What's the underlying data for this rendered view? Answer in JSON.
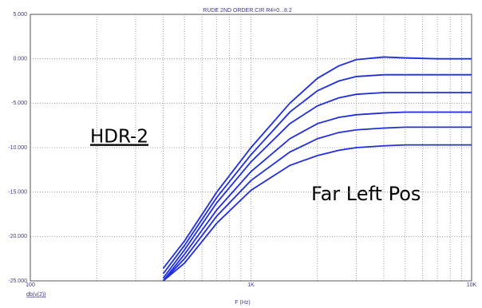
{
  "chart_data": {
    "type": "line",
    "title": "RUDE 2ND ORDER.CIR R4=0...8.2",
    "y_label": "db(v(2))",
    "x_label": "F (Hz)",
    "annotations": [
      "HDR-2",
      "Far Left Pos"
    ],
    "x": [
      400,
      500,
      700,
      1000,
      1500,
      2000,
      2500,
      3000,
      4000,
      5000,
      7000,
      10000
    ],
    "series": [
      {
        "color": "#1f2ee0",
        "values": [
          -23.6,
          -20.5,
          -15,
          -10,
          -5,
          -2.2,
          -0.8,
          -0.1,
          0.2,
          0.1,
          0,
          0
        ]
      },
      {
        "color": "#1f2ee0",
        "values": [
          -24.2,
          -21,
          -15.6,
          -10.8,
          -6,
          -3.6,
          -2.5,
          -2,
          -1.8,
          -1.8,
          -1.8,
          -1.8
        ]
      },
      {
        "color": "#1f2ee0",
        "values": [
          -24.7,
          -21.5,
          -16.2,
          -11.6,
          -7.3,
          -5.3,
          -4.4,
          -4,
          -3.8,
          -3.8,
          -3.8,
          -3.8
        ]
      },
      {
        "color": "#1f2ee0",
        "values": [
          -25,
          -22,
          -17,
          -12.7,
          -9,
          -7.3,
          -6.6,
          -6.3,
          -6.1,
          -6,
          -6,
          -6
        ]
      },
      {
        "color": "#1f2ee0",
        "values": [
          -25,
          -22.5,
          -17.7,
          -13.7,
          -10.5,
          -9,
          -8.3,
          -8,
          -7.8,
          -7.7,
          -7.7,
          -7.7
        ]
      },
      {
        "color": "#1f2ee0",
        "values": [
          -25,
          -23,
          -18.5,
          -14.8,
          -12,
          -10.9,
          -10.3,
          -10,
          -9.8,
          -9.7,
          -9.7,
          -9.7
        ]
      }
    ],
    "xscale": "log",
    "xlim": [
      100,
      10000
    ],
    "xticks": [
      100,
      {
        "value": 1000,
        "label": "1K"
      },
      {
        "value": 10000,
        "label": "10K"
      }
    ],
    "xgrid_minor": [
      200,
      300,
      400,
      500,
      600,
      700,
      800,
      900,
      2000,
      3000,
      4000,
      5000,
      6000,
      7000,
      8000,
      9000
    ],
    "ylim": [
      -25,
      5
    ],
    "yticks": [
      {
        "value": -25,
        "label": "-25.000"
      },
      {
        "value": -20,
        "label": "-20.000"
      },
      {
        "value": -15,
        "label": "-15.000"
      },
      {
        "value": -10,
        "label": "-10.000"
      },
      {
        "value": -5,
        "label": "-5.000"
      },
      {
        "value": 0,
        "label": "0.000"
      },
      {
        "value": 5,
        "label": "5.000"
      }
    ],
    "grid": true
  }
}
